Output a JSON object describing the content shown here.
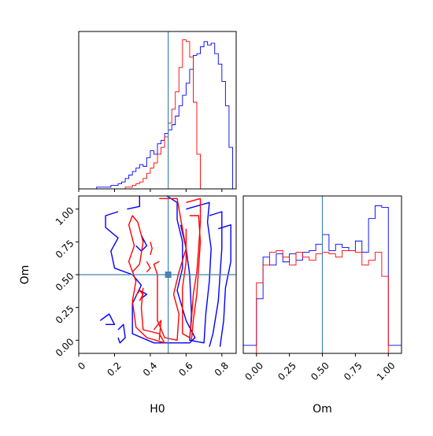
{
  "chart_data": {
    "type": "corner",
    "parameters": [
      "H0",
      "Om"
    ],
    "truths": {
      "H0": 0.5,
      "Om": 0.5
    },
    "truth_color": "#4682b4",
    "series": [
      {
        "color": "#0000ff"
      },
      {
        "color": "#ff0000"
      }
    ],
    "panels": {
      "H0_hist": {
        "type": "histogram",
        "xlim": [
          0.0,
          0.88
        ],
        "x_ticks": [
          0.0,
          0.2,
          0.4,
          0.6,
          0.8
        ],
        "bin_edges": [
          0.0,
          0.02,
          0.04,
          0.06,
          0.08,
          0.1,
          0.12,
          0.14,
          0.16,
          0.18,
          0.2,
          0.22,
          0.24,
          0.26,
          0.28,
          0.3,
          0.32,
          0.34,
          0.36,
          0.38,
          0.4,
          0.42,
          0.44,
          0.46,
          0.48,
          0.5,
          0.52,
          0.54,
          0.56,
          0.58,
          0.6,
          0.62,
          0.64,
          0.66,
          0.68,
          0.7,
          0.72,
          0.74,
          0.76,
          0.78,
          0.8,
          0.82,
          0.84,
          0.86,
          0.88
        ],
        "series_values": [
          [
            0,
            0,
            0,
            0,
            0,
            1,
            1,
            1,
            1,
            2,
            2,
            3,
            4,
            6,
            8,
            10,
            12,
            14,
            13,
            18,
            22,
            20,
            26,
            28,
            32,
            34,
            37,
            42,
            48,
            54,
            61,
            69,
            77,
            78,
            82,
            85,
            83,
            84,
            78,
            72,
            62,
            48,
            24,
            0
          ],
          [
            0,
            0,
            0,
            0,
            0,
            0,
            0,
            0,
            0,
            0,
            0,
            0,
            0,
            1,
            1,
            2,
            3,
            4,
            6,
            9,
            12,
            15,
            20,
            24,
            30,
            38,
            46,
            56,
            70,
            86,
            85,
            76,
            50,
            20,
            0,
            0,
            0,
            0,
            0,
            0,
            0,
            0,
            0,
            0
          ]
        ]
      },
      "Om_hist": {
        "type": "histogram",
        "xlim": [
          -0.1,
          1.1
        ],
        "x_ticks": [
          0.0,
          0.25,
          0.5,
          0.75,
          1.0
        ],
        "x_tick_labels": [
          "0.00",
          "0.25",
          "0.50",
          "0.75",
          "1.00"
        ],
        "bin_edges": [
          -0.1,
          -0.05,
          0.0,
          0.05,
          0.1,
          0.15,
          0.2,
          0.25,
          0.3,
          0.35,
          0.4,
          0.45,
          0.5,
          0.55,
          0.6,
          0.65,
          0.7,
          0.75,
          0.8,
          0.85,
          0.9,
          0.95,
          1.0,
          1.05,
          1.1
        ],
        "series_values": [
          [
            0.05,
            0.05,
            0.34,
            0.6,
            0.55,
            0.62,
            0.57,
            0.62,
            0.58,
            0.63,
            0.64,
            0.68,
            0.74,
            0.64,
            0.68,
            0.66,
            0.64,
            0.7,
            0.63,
            0.84,
            0.92,
            0.91,
            0.05,
            0.05
          ],
          [
            0,
            0,
            0.44,
            0.55,
            0.63,
            0.64,
            0.6,
            0.55,
            0.63,
            0.6,
            0.58,
            0.62,
            0.63,
            0.62,
            0.6,
            0.64,
            0.64,
            0.63,
            0.55,
            0.58,
            0.63,
            0.48,
            0,
            0
          ]
        ]
      },
      "H0_Om_contour": {
        "type": "contour",
        "xlim": [
          0.0,
          0.88
        ],
        "ylim": [
          -0.1,
          1.1
        ],
        "x_ticks": [
          0.0,
          0.2,
          0.4,
          0.6,
          0.8
        ],
        "y_ticks": [
          0.0,
          0.25,
          0.5,
          0.75,
          1.0
        ],
        "y_tick_labels": [
          "0.00",
          "0.25",
          "0.50",
          "0.75",
          "1.00"
        ],
        "xlabel": "H0",
        "ylabel": "Om",
        "series_contours": [
          [
            [
              [
                0.27,
                1.0
              ],
              [
                0.34,
                1.02
              ],
              [
                0.34,
                1.12
              ],
              [
                0.47,
                1.12
              ],
              [
                0.55,
                1.05
              ],
              [
                0.55,
                0.92
              ],
              [
                0.58,
                0.75
              ],
              [
                0.58,
                0.55
              ],
              [
                0.55,
                0.38
              ],
              [
                0.6,
                0.15
              ],
              [
                0.65,
                0.02
              ],
              [
                0.62,
                -0.02
              ],
              [
                0.42,
                -0.02
              ],
              [
                0.3,
                0.05
              ],
              [
                0.3,
                0.28
              ],
              [
                0.35,
                0.42
              ],
              [
                0.3,
                0.5
              ],
              [
                0.2,
                0.55
              ],
              [
                0.18,
                0.68
              ],
              [
                0.22,
                0.78
              ],
              [
                0.15,
                0.86
              ],
              [
                0.15,
                0.95
              ],
              [
                0.22,
                0.98
              ]
            ],
            [
              [
                0.57,
                1.1
              ],
              [
                0.63,
                1.12
              ],
              [
                0.88,
                1.12
              ]
            ],
            [
              [
                0.6,
                1.0
              ],
              [
                0.73,
                1.05
              ],
              [
                0.72,
                0.9
              ],
              [
                0.74,
                0.7
              ],
              [
                0.73,
                0.45
              ],
              [
                0.71,
                0.2
              ],
              [
                0.7,
                -0.02
              ],
              [
                0.62,
                0.0
              ],
              [
                0.63,
                0.2
              ],
              [
                0.62,
                0.5
              ],
              [
                0.6,
                0.7
              ],
              [
                0.57,
                0.88
              ]
            ],
            [
              [
                0.73,
                0.95
              ],
              [
                0.8,
                0.98
              ],
              [
                0.8,
                0.7
              ],
              [
                0.79,
                0.5
              ],
              [
                0.78,
                0.3
              ],
              [
                0.75,
                0.05
              ],
              [
                0.73,
                -0.05
              ]
            ],
            [
              [
                0.78,
                0.85
              ],
              [
                0.85,
                0.88
              ],
              [
                0.85,
                0.6
              ],
              [
                0.82,
                0.4
              ],
              [
                0.81,
                0.15
              ],
              [
                0.79,
                -0.05
              ]
            ],
            [
              [
                0.35,
                0.8
              ],
              [
                0.38,
                0.72
              ],
              [
                0.35,
                0.68
              ],
              [
                0.32,
                0.72
              ]
            ],
            [
              [
                0.34,
                0.38
              ],
              [
                0.38,
                0.35
              ],
              [
                0.35,
                0.32
              ]
            ],
            [
              [
                0.12,
                0.15
              ],
              [
                0.17,
                0.2
              ],
              [
                0.2,
                0.12
              ],
              [
                0.15,
                0.12
              ]
            ],
            [
              [
                0.22,
                0.08
              ],
              [
                0.25,
                0.12
              ],
              [
                0.26,
                0.02
              ],
              [
                0.23,
                -0.02
              ],
              [
                0.22,
                0.02
              ]
            ]
          ],
          [
            [
              [
                0.45,
                0.6
              ],
              [
                0.42,
                0.58
              ],
              [
                0.44,
                0.5
              ],
              [
                0.44,
                0.35
              ],
              [
                0.44,
                0.15
              ],
              [
                0.48,
                0.02
              ],
              [
                0.55,
                0.0
              ],
              [
                0.56,
                0.2
              ],
              [
                0.53,
                0.35
              ],
              [
                0.56,
                0.52
              ],
              [
                0.6,
                0.7
              ],
              [
                0.58,
                0.85
              ],
              [
                0.55,
                1.08
              ],
              [
                0.45,
                1.08
              ]
            ],
            [
              [
                0.6,
                1.05
              ],
              [
                0.68,
                1.08
              ],
              [
                0.68,
                0.9
              ],
              [
                0.67,
                0.7
              ],
              [
                0.66,
                0.52
              ],
              [
                0.64,
                0.35
              ],
              [
                0.63,
                0.15
              ],
              [
                0.62,
                0.02
              ],
              [
                0.58,
                0.05
              ],
              [
                0.58,
                0.2
              ],
              [
                0.58,
                0.4
              ],
              [
                0.6,
                0.6
              ],
              [
                0.6,
                0.85
              ]
            ],
            [
              [
                0.62,
                0.95
              ],
              [
                0.67,
                0.95
              ],
              [
                0.68,
                0.75
              ],
              [
                0.67,
                0.55
              ],
              [
                0.66,
                0.35
              ],
              [
                0.64,
                0.15
              ],
              [
                0.63,
                0.0
              ]
            ],
            [
              [
                0.3,
                0.52
              ],
              [
                0.34,
                0.58
              ],
              [
                0.36,
                0.75
              ],
              [
                0.33,
                0.9
              ],
              [
                0.3,
                0.95
              ],
              [
                0.28,
                0.88
              ],
              [
                0.31,
                0.72
              ],
              [
                0.28,
                0.6
              ],
              [
                0.32,
                0.45
              ],
              [
                0.3,
                0.3
              ],
              [
                0.32,
                0.1
              ],
              [
                0.38,
                0.02
              ],
              [
                0.48,
                -0.02
              ],
              [
                0.45,
                0.05
              ],
              [
                0.36,
                0.08
              ],
              [
                0.35,
                0.25
              ],
              [
                0.36,
                0.4
              ]
            ],
            [
              [
                0.4,
                0.75
              ],
              [
                0.41,
                0.7
              ],
              [
                0.4,
                0.65
              ]
            ],
            [
              [
                0.38,
                0.6
              ],
              [
                0.4,
                0.55
              ],
              [
                0.38,
                0.52
              ]
            ],
            [
              [
                0.34,
                0.3
              ],
              [
                0.36,
                0.35
              ],
              [
                0.34,
                0.38
              ],
              [
                0.32,
                0.34
              ]
            ],
            [
              [
                0.42,
                0.08
              ],
              [
                0.46,
                0.15
              ],
              [
                0.45,
                0.0
              ]
            ]
          ]
        ]
      }
    }
  }
}
